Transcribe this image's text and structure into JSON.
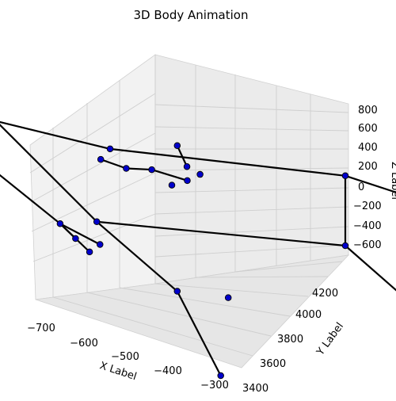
{
  "chart_data": {
    "type": "scatter",
    "title": "3D Body Animation",
    "xlabel": "X Label",
    "ylabel": "Y Label",
    "zlabel": "Z Label",
    "x_ticks": [
      "−700",
      "−600",
      "−500",
      "−400",
      "−300"
    ],
    "y_ticks": [
      "3400",
      "3600",
      "3800",
      "4000",
      "4200"
    ],
    "z_ticks": [
      "800",
      "600",
      "400",
      "200",
      "0",
      "−200",
      "−400",
      "−600"
    ],
    "grid": true,
    "marker_color": "#0000cc",
    "bone_color": "#000000",
    "points_2d_hint": "joints as projected markers",
    "joints": [
      {
        "name": "head_top",
        "v": [
          -520,
          3700,
          420
        ]
      },
      {
        "name": "head_r1",
        "v": [
          -505,
          3690,
          330
        ]
      },
      {
        "name": "head_r2",
        "v": [
          -500,
          3705,
          290
        ]
      },
      {
        "name": "face_1",
        "v": [
          -540,
          3690,
          280
        ]
      },
      {
        "name": "face_2",
        "v": [
          -560,
          3680,
          270
        ]
      },
      {
        "name": "face_3",
        "v": [
          -580,
          3670,
          300
        ]
      },
      {
        "name": "face_4",
        "v": [
          -510,
          3700,
          250
        ]
      },
      {
        "name": "face_5",
        "v": [
          -520,
          3690,
          220
        ]
      },
      {
        "name": "neck",
        "v": [
          -560,
          3650,
          380
        ]
      },
      {
        "name": "shoulder_l",
        "v": [
          -700,
          3700,
          370
        ]
      },
      {
        "name": "elbow_l",
        "v": [
          -720,
          3720,
          120
        ]
      },
      {
        "name": "wrist_l",
        "v": [
          -690,
          3800,
          -180
        ]
      },
      {
        "name": "hand_l1",
        "v": [
          -680,
          3810,
          -250
        ]
      },
      {
        "name": "hand_l2",
        "v": [
          -650,
          3780,
          -280
        ]
      },
      {
        "name": "hand_l3",
        "v": [
          -645,
          3790,
          -240
        ]
      },
      {
        "name": "shoulder_r",
        "v": [
          -460,
          3900,
          260
        ]
      },
      {
        "name": "elbow_r",
        "v": [
          -380,
          4000,
          80
        ]
      },
      {
        "name": "wrist_r",
        "v": [
          -360,
          4160,
          -220
        ]
      },
      {
        "name": "hand_r1",
        "v": [
          -370,
          4150,
          -300
        ]
      },
      {
        "name": "hand_r2",
        "v": [
          -350,
          4170,
          -310
        ]
      },
      {
        "name": "hand_r3",
        "v": [
          -340,
          4180,
          -280
        ]
      },
      {
        "name": "hip_l",
        "v": [
          -600,
          3700,
          -50
        ]
      },
      {
        "name": "knee_l",
        "v": [
          -520,
          3700,
          -330
        ]
      },
      {
        "name": "ankle_l",
        "v": [
          -480,
          3720,
          -330
        ]
      },
      {
        "name": "foot_l",
        "v": [
          -450,
          3650,
          -680
        ]
      },
      {
        "name": "hip_r",
        "v": [
          -460,
          3900,
          -100
        ]
      },
      {
        "name": "knee_r",
        "v": [
          -420,
          3950,
          -380
        ]
      },
      {
        "name": "ankle_r",
        "v": [
          -400,
          3950,
          -460
        ]
      },
      {
        "name": "foot_r",
        "v": [
          -330,
          4100,
          -680
        ]
      }
    ],
    "bones": [
      [
        "head_top",
        "head_r1"
      ],
      [
        "neck",
        "shoulder_l"
      ],
      [
        "shoulder_l",
        "elbow_l"
      ],
      [
        "elbow_l",
        "wrist_l"
      ],
      [
        "wrist_l",
        "hand_l1"
      ],
      [
        "wrist_l",
        "hand_l2"
      ],
      [
        "wrist_l",
        "hand_l3"
      ],
      [
        "neck",
        "shoulder_r"
      ],
      [
        "shoulder_r",
        "elbow_r"
      ],
      [
        "elbow_r",
        "wrist_r"
      ],
      [
        "wrist_r",
        "hand_r1"
      ],
      [
        "wrist_r",
        "hand_r2"
      ],
      [
        "wrist_r",
        "hand_r3"
      ],
      [
        "shoulder_l",
        "hip_l"
      ],
      [
        "shoulder_r",
        "hip_r"
      ],
      [
        "hip_l",
        "hip_r"
      ],
      [
        "hip_l",
        "knee_l"
      ],
      [
        "knee_l",
        "foot_l"
      ],
      [
        "hip_r",
        "knee_r"
      ],
      [
        "knee_r",
        "foot_r"
      ],
      [
        "face_3",
        "face_2"
      ],
      [
        "face_2",
        "face_1"
      ],
      [
        "face_1",
        "face_4"
      ]
    ]
  }
}
